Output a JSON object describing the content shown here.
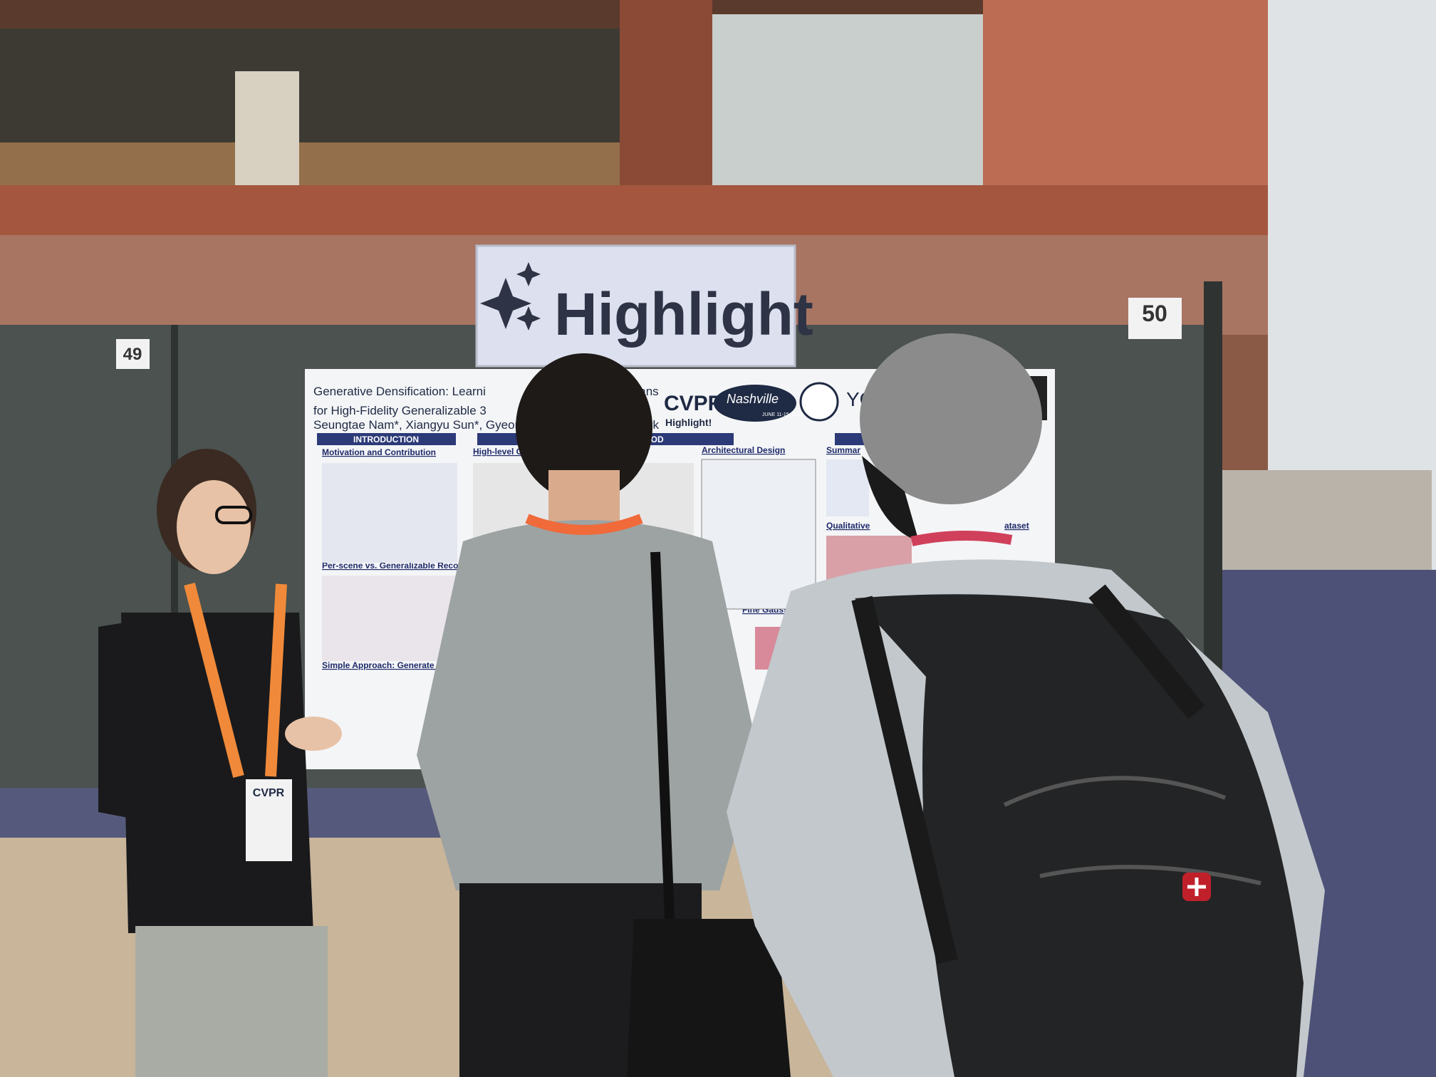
{
  "signs": {
    "highlight": "Highlight",
    "booth_left": "49",
    "booth_right": "50"
  },
  "poster": {
    "title_line1": "Generative Densification: Learni",
    "title_line1_end": "sians",
    "title_line2": "for High-Fidelity Generalizable 3",
    "authors": "Seungtae Nam*, Xiangyu Sun*, Gyeongjin Kang, Youn",
    "authors_end": "Park",
    "conference": "CVPR",
    "conference_city": "Nashville",
    "conference_dates": "JUNE 11-15, 2025",
    "conference_note": "Highlight!",
    "university": "YO",
    "intro_bar": "INTRODUCTION",
    "method_bar": "HOD",
    "sections": [
      "Motivation and Contribution",
      "Per-scene vs. Generalizable Reconstruction",
      "Simple Approach: Generate M",
      "High-level O",
      "Architectural Design",
      "Fine Gaussians",
      "Summar",
      "Qualitative",
      "ataset"
    ]
  },
  "badge": {
    "conference": "CVPR"
  }
}
